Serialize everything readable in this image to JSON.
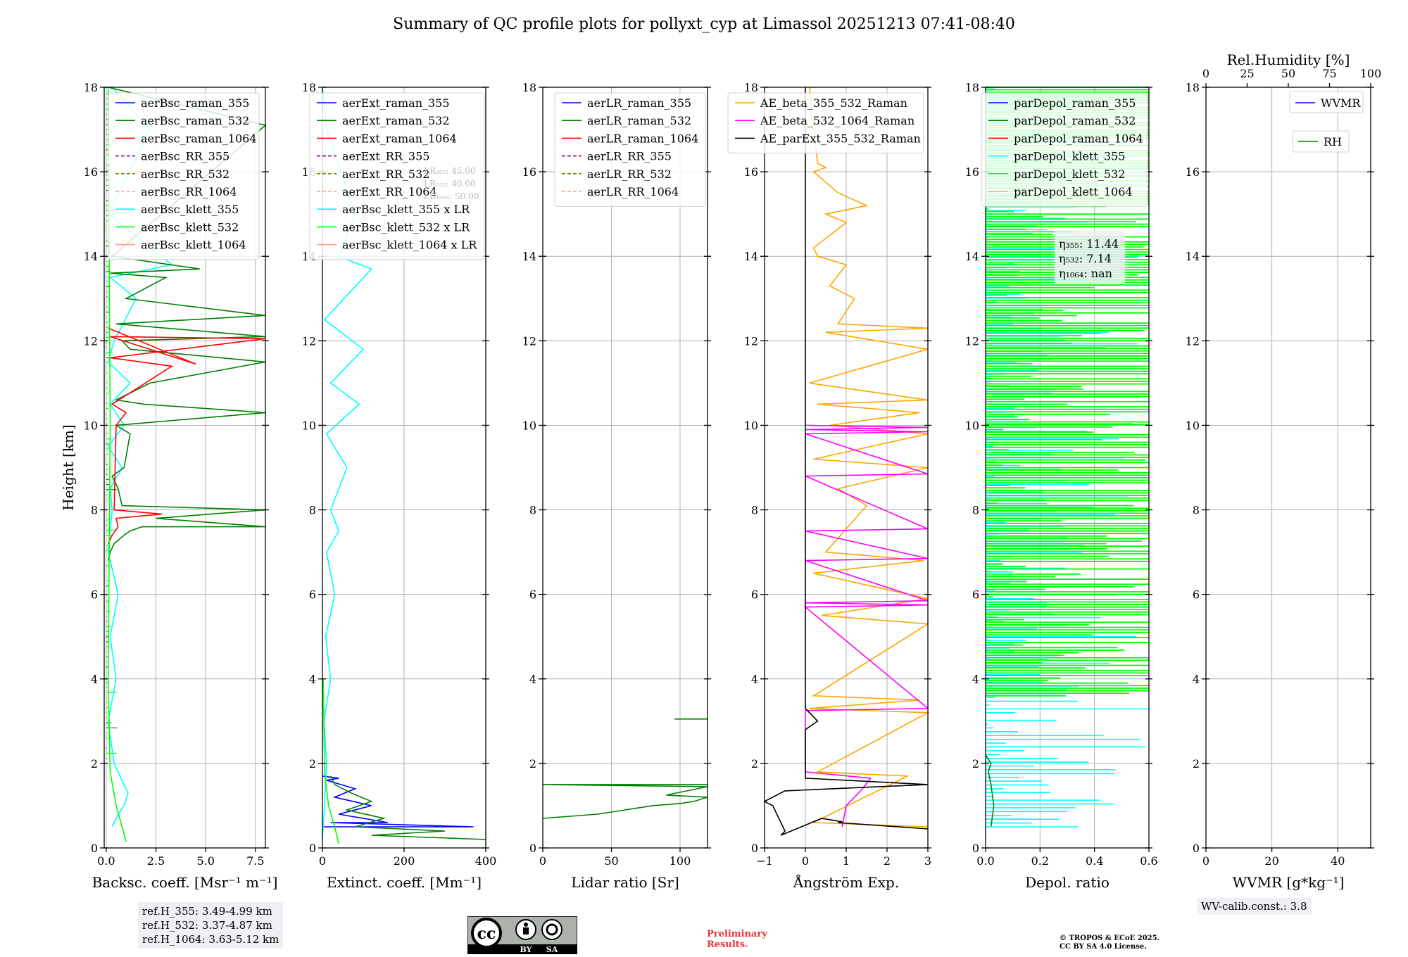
{
  "title": "Summary of QC profile plots for pollyxt_cyp at Limassol 20251213 07:41-08:40",
  "ref_heights": [
    "ref.H_355: 3.49-4.99 km",
    "ref.H_532: 3.37-4.87 km",
    "ref.H_1064: 3.63-5.12 km"
  ],
  "wv_calib": "WV-calib.const.: 3.8",
  "preliminary": [
    "Preliminary",
    "Results."
  ],
  "copyright": [
    "© TROPOS & ECoE 2025.",
    "CC BY SA 4.0 License."
  ],
  "cc_badge": {
    "by": "BY",
    "sa": "SA",
    "cc": "cc"
  },
  "colors": {
    "blue": "#0000ff",
    "green": "#008000",
    "red": "#ff0000",
    "cyan": "#00ffff",
    "lime": "#00ff00",
    "salmon": "#ff9f8f",
    "olive": "#808000",
    "purple": "#800080",
    "orange": "#ffa500",
    "magenta": "#ff00ff",
    "black": "#000000"
  },
  "chart_data": [
    {
      "type": "line",
      "id": "bsc",
      "xlabel": "Backsc. coeff. [Msr⁻¹ m⁻¹]",
      "ylabel": "Height [km]",
      "xlim": [
        -0.1,
        8.0
      ],
      "ylim": [
        0,
        18
      ],
      "xticks": [
        0.0,
        2.5,
        5.0,
        7.5
      ],
      "xtick_labels": [
        "0.0",
        "2.5",
        "5.0",
        "7.5"
      ],
      "yticks": [
        0,
        2,
        4,
        6,
        8,
        10,
        12,
        14,
        16,
        18
      ],
      "legend": [
        {
          "label": "aerBsc_raman_355",
          "color": "blue",
          "dash": false
        },
        {
          "label": "aerBsc_raman_532",
          "color": "green",
          "dash": false
        },
        {
          "label": "aerBsc_raman_1064",
          "color": "red",
          "dash": false
        },
        {
          "label": "aerBsc_RR_355",
          "color": "purple",
          "dash": true
        },
        {
          "label": "aerBsc_RR_532",
          "color": "olive",
          "dash": true
        },
        {
          "label": "aerBsc_RR_1064",
          "color": "salmon",
          "dash": true
        },
        {
          "label": "aerBsc_klett_355",
          "color": "cyan",
          "dash": false
        },
        {
          "label": "aerBsc_klett_532",
          "color": "lime",
          "dash": false
        },
        {
          "label": "aerBsc_klett_1064",
          "color": "salmon",
          "dash": false
        }
      ],
      "series": [
        {
          "name": "aerBsc_klett_355",
          "color": "cyan",
          "x": [
            0.3,
            0.6,
            0.9,
            1.1,
            0.8,
            0.4,
            0.1,
            0.5,
            0.2,
            0.6,
            0.1,
            0.3,
            0.2,
            0.8,
            0.1,
            0.9,
            0.2,
            1.2,
            0.1,
            0.4,
            1.5,
            0.2,
            3.3,
            0.1,
            2.2,
            0.3
          ],
          "y": [
            0.5,
            0.8,
            1.0,
            1.3,
            1.6,
            2.0,
            3.0,
            4.0,
            5.0,
            6.0,
            7.0,
            8.0,
            8.5,
            9.0,
            9.5,
            10.0,
            10.5,
            11.0,
            11.5,
            12.0,
            13.0,
            13.5,
            13.8,
            15.0,
            17.0,
            18.0
          ]
        },
        {
          "name": "aerBsc_raman_532",
          "color": "green",
          "x": [
            0.1,
            0.2,
            0.4,
            0.9,
            1.2,
            1.8,
            8.0,
            2.5,
            8.0,
            0.8,
            0.6,
            0.3,
            0.9,
            1.2,
            0.5,
            8.0,
            1.9,
            0.5,
            2.2,
            8.0,
            1.2,
            0.8,
            8.0,
            0.5,
            8.0,
            1.0,
            3.0,
            0.2,
            4.7,
            0.3,
            8.0,
            0.1
          ],
          "y": [
            6.8,
            7.0,
            7.2,
            7.4,
            7.5,
            7.6,
            7.6,
            7.8,
            8.0,
            8.1,
            8.5,
            8.8,
            9.0,
            9.8,
            10.0,
            10.3,
            10.5,
            10.6,
            11.0,
            11.5,
            11.8,
            12.0,
            12.1,
            12.4,
            12.6,
            13.0,
            13.5,
            13.6,
            13.7,
            14.0,
            17.1,
            18.0
          ]
        },
        {
          "name": "aerBsc_raman_1064",
          "color": "red",
          "x": [
            0.1,
            0.3,
            0.6,
            0.5,
            2.8,
            0.4,
            0.5,
            1.0,
            0.3,
            3.3,
            0.2,
            8.0,
            0.2,
            4.5,
            0.1
          ],
          "y": [
            7.2,
            7.4,
            7.6,
            7.8,
            7.9,
            8.0,
            10.0,
            10.3,
            10.5,
            11.4,
            11.6,
            12.05,
            12.1,
            11.45,
            12.3
          ]
        },
        {
          "name": "aerBsc_klett_532",
          "color": "lime",
          "x": [
            1.0,
            0.8,
            0.5,
            0.2,
            0.1,
            0.2,
            0.1
          ],
          "y": [
            0.15,
            0.5,
            1.0,
            1.8,
            4.0,
            10.0,
            18.0
          ]
        }
      ]
    },
    {
      "type": "line",
      "id": "ext",
      "xlabel": "Extinct. coeff. [Mm⁻¹]",
      "ylabel": "",
      "xlim": [
        0,
        400
      ],
      "ylim": [
        0,
        18
      ],
      "xticks": [
        0,
        200,
        400
      ],
      "xtick_labels": [
        "0",
        "200",
        "400"
      ],
      "yticks": [
        0,
        2,
        4,
        6,
        8,
        10,
        12,
        14,
        16,
        18
      ],
      "legend": [
        {
          "label": "aerExt_raman_355",
          "color": "blue",
          "dash": false
        },
        {
          "label": "aerExt_raman_532",
          "color": "green",
          "dash": false
        },
        {
          "label": "aerExt_raman_1064",
          "color": "red",
          "dash": false
        },
        {
          "label": "aerExt_RR_355",
          "color": "purple",
          "dash": true
        },
        {
          "label": "aerExt_RR_532",
          "color": "olive",
          "dash": true
        },
        {
          "label": "aerExt_RR_1064",
          "color": "salmon",
          "dash": true
        },
        {
          "label": "aerBsc_klett_355 x LR",
          "color": "cyan",
          "dash": false
        },
        {
          "label": "aerBsc_klett_532 x LR",
          "color": "lime",
          "dash": false
        },
        {
          "label": "aerBsc_klett_1064 x LR",
          "color": "salmon",
          "dash": false
        }
      ],
      "lr_labels": [
        "LR₃₅₅: 45.00",
        "LR₅₃₂: 40.00",
        "LR₁₀₆₄: 50.00"
      ],
      "series": [
        {
          "name": "aerExt_raman_355",
          "color": "blue",
          "x": [
            0,
            370,
            20,
            160,
            40,
            120,
            30,
            80,
            10,
            40,
            0
          ],
          "y": [
            0.5,
            0.5,
            0.6,
            0.6,
            0.8,
            1.0,
            1.2,
            1.4,
            1.6,
            1.65,
            1.7
          ]
        },
        {
          "name": "aerExt_raman_532",
          "color": "green",
          "x": [
            400,
            120,
            300,
            80,
            150,
            60,
            120,
            70,
            30,
            20
          ],
          "y": [
            0.2,
            0.3,
            0.4,
            0.5,
            0.7,
            0.9,
            1.1,
            1.3,
            1.5,
            1.7
          ]
        },
        {
          "name": "aerBsc_klett_355 x LR",
          "color": "cyan",
          "x": [
            0,
            5,
            10,
            4,
            20,
            8,
            30,
            10,
            40,
            20,
            60,
            10,
            90,
            20,
            100,
            5,
            120,
            40,
            80,
            10,
            0
          ],
          "y": [
            0.2,
            1.0,
            2.0,
            3.0,
            4.0,
            5.0,
            6.0,
            7.0,
            7.5,
            8.0,
            9.0,
            9.8,
            10.5,
            11.0,
            11.8,
            12.5,
            13.7,
            14.0,
            15.0,
            17.0,
            18.0
          ]
        },
        {
          "name": "aerBsc_klett_532 x LR",
          "color": "lime",
          "x": [
            40,
            30,
            15,
            5,
            2
          ],
          "y": [
            0.1,
            0.5,
            1.0,
            1.8,
            4.0
          ]
        }
      ]
    },
    {
      "type": "line",
      "id": "lr",
      "xlabel": "Lidar ratio [Sr]",
      "ylabel": "",
      "xlim": [
        0,
        120
      ],
      "ylim": [
        0,
        18
      ],
      "xticks": [
        0,
        50,
        100
      ],
      "xtick_labels": [
        "0",
        "50",
        "100"
      ],
      "yticks": [
        0,
        2,
        4,
        6,
        8,
        10,
        12,
        14,
        16,
        18
      ],
      "legend": [
        {
          "label": "aerLR_raman_355",
          "color": "blue",
          "dash": false
        },
        {
          "label": "aerLR_raman_532",
          "color": "green",
          "dash": false
        },
        {
          "label": "aerLR_raman_1064",
          "color": "red",
          "dash": false
        },
        {
          "label": "aerLR_RR_355",
          "color": "purple",
          "dash": true
        },
        {
          "label": "aerLR_RR_532",
          "color": "olive",
          "dash": true
        },
        {
          "label": "aerLR_RR_1064",
          "color": "salmon",
          "dash": true
        }
      ],
      "series": [
        {
          "name": "aerLR_raman_532",
          "color": "green",
          "x": [
            0,
            20,
            40,
            60,
            80,
            100,
            110,
            120,
            90,
            120,
            0,
            120
          ],
          "y": [
            0.7,
            0.75,
            0.8,
            0.9,
            1.0,
            1.05,
            1.1,
            1.2,
            1.25,
            1.45,
            1.5,
            1.5
          ]
        },
        {
          "name": "aerLR_raman_532_b",
          "color": "green",
          "x": [
            96,
            120
          ],
          "y": [
            3.05,
            3.05
          ]
        }
      ]
    },
    {
      "type": "line",
      "id": "ae",
      "xlabel": "Ångström Exp.",
      "ylabel": "",
      "xlim": [
        -1,
        3
      ],
      "ylim": [
        0,
        18
      ],
      "xticks": [
        -1,
        0,
        1,
        2,
        3
      ],
      "xtick_labels": [
        "−1",
        "0",
        "1",
        "2",
        "3"
      ],
      "yticks": [
        0,
        2,
        4,
        6,
        8,
        10,
        12,
        14,
        16,
        18
      ],
      "legend": [
        {
          "label": "AE_beta_355_532_Raman",
          "color": "orange",
          "dash": false
        },
        {
          "label": "AE_beta_532_1064_Raman",
          "color": "magenta",
          "dash": false
        },
        {
          "label": "AE_parExt_355_532_Raman",
          "color": "black",
          "dash": false
        }
      ],
      "series": [
        {
          "name": "AE_beta_355_532_Raman",
          "color": "orange",
          "x": [
            3,
            0.2,
            2.5,
            0.3,
            3,
            0.1,
            2.8,
            0.2,
            3,
            0.4,
            3,
            0.2,
            2.9,
            0.5,
            1.5,
            0.8,
            3,
            0.2,
            3,
            0.6,
            2.8,
            0.3,
            3,
            0.1,
            3,
            0.5,
            3,
            0.8,
            1.2,
            0.6,
            1.0,
            0.3,
            0.2,
            1.0,
            0.5,
            1.5,
            0.8,
            0.2,
            0.5,
            0.3,
            0.1
          ],
          "y": [
            0.5,
            0.6,
            1.7,
            1.8,
            3.2,
            3.3,
            3.5,
            3.6,
            5.3,
            5.5,
            5.9,
            6.5,
            6.8,
            7.0,
            8.1,
            8.5,
            9.0,
            9.2,
            9.8,
            10.0,
            10.3,
            10.5,
            10.6,
            11.0,
            11.8,
            12.2,
            12.3,
            12.4,
            13.0,
            13.3,
            13.8,
            14.0,
            14.2,
            14.8,
            15.0,
            15.2,
            15.5,
            16.0,
            16.1,
            16.2,
            18.0
          ]
        },
        {
          "name": "AE_beta_532_1064_Raman",
          "color": "magenta",
          "x": [
            0.9,
            1.0,
            1.4,
            1.6,
            0,
            0,
            3,
            0,
            3,
            0,
            3,
            0,
            3,
            0,
            3,
            0,
            3,
            0,
            3,
            0,
            3,
            0
          ],
          "y": [
            0.5,
            1.0,
            1.4,
            1.65,
            1.8,
            3.25,
            3.3,
            5.7,
            5.75,
            5.8,
            5.85,
            6.8,
            6.85,
            7.5,
            7.55,
            8.8,
            8.85,
            9.8,
            9.85,
            9.9,
            9.95,
            10.0
          ]
        },
        {
          "name": "AE_parExt_355_532_Raman",
          "color": "black",
          "x": [
            3,
            0.8,
            0.9,
            0.4,
            -0.6,
            -0.5,
            -0.8,
            -1,
            -0.5,
            3,
            0,
            0,
            0.3,
            0.2,
            0.1,
            0,
            0
          ],
          "y": [
            0.45,
            0.6,
            0.62,
            0.7,
            0.3,
            0.4,
            1.0,
            1.1,
            1.35,
            1.5,
            1.65,
            2.8,
            3.0,
            3.1,
            3.2,
            3.3,
            18.0
          ]
        }
      ]
    },
    {
      "type": "line",
      "id": "depol",
      "xlabel": "Depol. ratio",
      "ylabel": "",
      "xlim": [
        0,
        0.6
      ],
      "ylim": [
        0,
        18
      ],
      "xticks": [
        0.0,
        0.2,
        0.4,
        0.6
      ],
      "xtick_labels": [
        "0.0",
        "0.2",
        "0.4",
        "0.6"
      ],
      "yticks": [
        0,
        2,
        4,
        6,
        8,
        10,
        12,
        14,
        16,
        18
      ],
      "legend": [
        {
          "label": "parDepol_raman_355",
          "color": "blue",
          "dash": false
        },
        {
          "label": "parDepol_raman_532",
          "color": "green",
          "dash": false
        },
        {
          "label": "parDepol_raman_1064",
          "color": "red",
          "dash": false
        },
        {
          "label": "parDepol_klett_355",
          "color": "cyan",
          "dash": false
        },
        {
          "label": "parDepol_klett_532",
          "color": "lime",
          "dash": false
        },
        {
          "label": "parDepol_klett_1064",
          "color": "salmon",
          "dash": false
        }
      ],
      "eta_labels": [
        "η₃₅₅: 11.44",
        "η₅₃₂: 7.14",
        "η₁₀₆₄: nan"
      ],
      "klett_532_range": {
        "y_from": 3.6,
        "y_to": 18.0,
        "x_max": 0.6
      },
      "klett_355_range": {
        "y_from": 0.5,
        "y_to": 18.0,
        "x_max": 0.6
      },
      "series": [
        {
          "name": "parDepol_raman_532",
          "color": "green",
          "x": [
            0.02,
            0.03,
            0.02,
            0.01,
            0.02,
            0.0
          ],
          "y": [
            0.5,
            1.0,
            1.5,
            1.8,
            2.0,
            2.2
          ]
        },
        {
          "name": "parDepol_klett_355",
          "color": "cyan",
          "x": [
            0.34,
            0.0
          ],
          "y": [
            0.5,
            0.5
          ]
        }
      ]
    },
    {
      "type": "line",
      "id": "wv",
      "xlabel": "WVMR [g*kg⁻¹]",
      "ylabel": "",
      "xlim": [
        0,
        50
      ],
      "ylim": [
        0,
        18
      ],
      "xticks": [
        0,
        20,
        40
      ],
      "xtick_labels": [
        "0",
        "20",
        "40"
      ],
      "yticks": [
        0,
        2,
        4,
        6,
        8,
        10,
        12,
        14,
        16,
        18
      ],
      "top_xlabel": "Rel.Humidity [%]",
      "top_xlim": [
        0,
        100
      ],
      "top_xticks": [
        0,
        25,
        50,
        75,
        100
      ],
      "top_xtick_labels": [
        "0",
        "25",
        "50",
        "75",
        "100"
      ],
      "legend": [
        {
          "label": "WVMR",
          "color": "blue",
          "dash": false
        },
        {
          "label": "RH",
          "color": "green",
          "dash": false
        }
      ],
      "series": []
    }
  ]
}
